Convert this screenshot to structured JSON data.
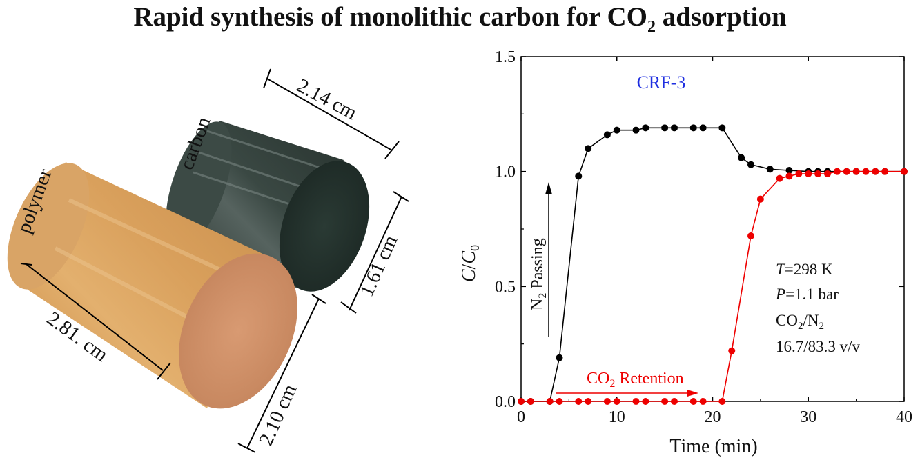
{
  "title": {
    "prefix": "Rapid synthesis of monolithic carbon for CO",
    "sub": "2",
    "suffix": " adsorption"
  },
  "photo": {
    "polymer_label": "polymer",
    "carbon_label": "carbon",
    "dim_carbon_diameter": "2.14 cm",
    "dim_carbon_length": "1.61 cm",
    "dim_polymer_length": "2.81. cm",
    "dim_polymer_diameter": "2.10 cm",
    "colors": {
      "polymer": "#d9a05c",
      "polymer_face": "#c98a62",
      "carbon": "#2f3c37",
      "carbon_face": "#22302b"
    }
  },
  "chart_data": {
    "type": "line",
    "sample_label": "CRF-3",
    "xlabel": "Time (min)",
    "ylabel_main": "C",
    "ylabel_den": "C",
    "ylabel_den_sub": "0",
    "xlim": [
      0,
      40
    ],
    "ylim": [
      0,
      1.5
    ],
    "xticks": [
      "0",
      "10",
      "20",
      "30",
      "40"
    ],
    "yticks": [
      "0.0",
      "0.5",
      "1.0",
      "1.5"
    ],
    "series": [
      {
        "color": "#000000",
        "x": [
          0,
          1,
          3,
          4,
          6,
          7,
          9,
          10,
          12,
          13,
          15,
          16,
          18,
          19,
          21,
          23,
          24,
          26,
          28,
          30,
          31,
          32,
          34,
          35,
          37,
          38,
          40
        ],
        "y": [
          0.0,
          0.0,
          0.0,
          0.19,
          0.98,
          1.1,
          1.16,
          1.18,
          1.18,
          1.19,
          1.19,
          1.19,
          1.19,
          1.19,
          1.19,
          1.06,
          1.03,
          1.01,
          1.005,
          1.0,
          1.0,
          1.0,
          1.0,
          1.0,
          1.0,
          1.0,
          1.0
        ]
      },
      {
        "color": "#ee0000",
        "x": [
          0,
          1,
          3,
          4,
          6,
          7,
          9,
          10,
          12,
          13,
          15,
          16,
          18,
          19,
          21,
          22,
          24,
          25,
          27,
          28,
          29,
          30,
          31,
          32,
          33,
          34,
          35,
          36,
          37,
          38,
          40
        ],
        "y": [
          0.0,
          0.0,
          0.0,
          0.0,
          0.0,
          0.0,
          0.0,
          0.0,
          0.0,
          0.0,
          0.0,
          0.0,
          0.0,
          0.0,
          0.0,
          0.22,
          0.72,
          0.88,
          0.97,
          0.98,
          0.99,
          0.99,
          0.99,
          0.99,
          1.0,
          1.0,
          1.0,
          1.0,
          1.0,
          1.0,
          1.0
        ]
      }
    ],
    "annotations": {
      "n2_prefix": "N",
      "n2_sub": "2",
      "n2_suffix": " Passing",
      "co2_prefix": "CO",
      "co2_sub": "2",
      "co2_suffix": " Retention",
      "cond_T_var": "T",
      "cond_T_val": "=298 K",
      "cond_P_var": "P",
      "cond_P_val": "=1.1 bar",
      "cond_gas_a": "CO",
      "cond_gas_a_sub": "2",
      "cond_gas_slash": "/N",
      "cond_gas_b_sub": "2",
      "cond_ratio": "16.7/83.3 v/v"
    },
    "colors": {
      "black": "#000000",
      "red": "#ee0000",
      "sample_label": "#1f2fe0"
    }
  }
}
